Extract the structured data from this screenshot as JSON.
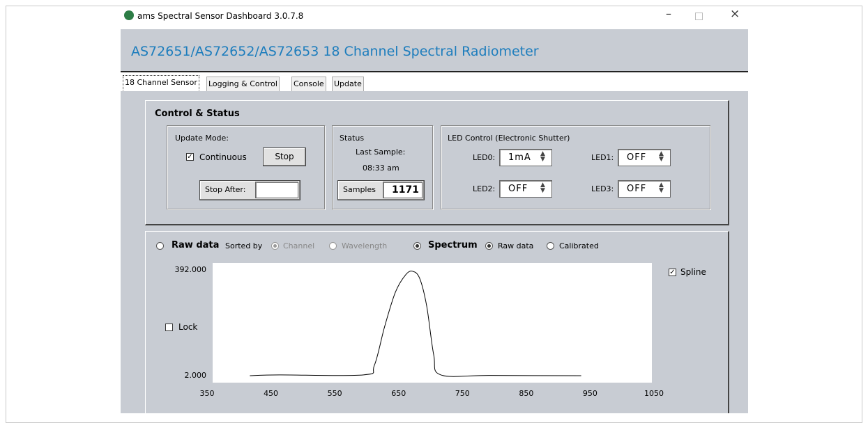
{
  "window_title": "ams Spectral Sensor Dashboard 3.0.7.8",
  "app_title": "AS72651/AS72652/AS72653 18 Channel Spectral Radiometer",
  "tabs": [
    "18 Channel Sensor",
    "Logging & Control",
    "Console",
    "Update"
  ],
  "control_status": {
    "title": "Control & Status",
    "update_mode": {
      "label": "Update Mode:",
      "continuous": "Continuous",
      "stop": "Stop",
      "stop_after": "Stop After:"
    },
    "status": {
      "label": "Status",
      "last_sample": "Last Sample:",
      "time": "08:33 am",
      "samples_label": "Samples",
      "samples_value": "1171"
    },
    "led_control": {
      "label": "LED Control (Electronic Shutter)",
      "leds": [
        {
          "name": "LED0:",
          "value": "1mA"
        },
        {
          "name": "LED1:",
          "value": "OFF"
        },
        {
          "name": "LED2:",
          "value": "OFF"
        },
        {
          "name": "LED3:",
          "value": "OFF"
        }
      ]
    }
  },
  "view_options": {
    "raw_data": "Raw data",
    "sorted_by": "Sorted by",
    "channel": "Channel",
    "wavelength": "Wavelength",
    "spectrum": "Spectrum",
    "spectrum_raw": "Raw data",
    "calibrated": "Calibrated",
    "spline": "Spline",
    "lock": "Lock"
  },
  "chart_data": {
    "type": "line",
    "x": [
      417,
      463,
      595,
      612,
      628,
      645,
      661,
      672,
      683,
      694,
      705,
      716,
      793,
      936
    ],
    "series": [
      {
        "color": "#000000",
        "values": [
          2,
          5,
          5,
          40,
          182,
          310,
          374,
          387,
          361,
          259,
          79,
          5,
          3,
          2
        ]
      }
    ],
    "xlim": [
      350,
      1050
    ],
    "xticks": [
      350,
      450,
      550,
      650,
      750,
      850,
      950,
      1050
    ],
    "ylim": [
      2,
      392
    ],
    "yticks": [
      {
        "value": 2,
        "label": "2.000"
      },
      {
        "value": 392,
        "label": "392.000"
      }
    ]
  }
}
